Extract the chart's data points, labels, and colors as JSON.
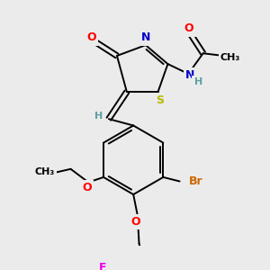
{
  "bg_color": "#ebebeb",
  "atom_colors": {
    "O": "#ff0000",
    "N": "#0000cd",
    "S": "#b8b800",
    "Br": "#cc6600",
    "F": "#ee00ee",
    "C": "#000000",
    "H": "#5f9ea0"
  },
  "lw": 1.4
}
